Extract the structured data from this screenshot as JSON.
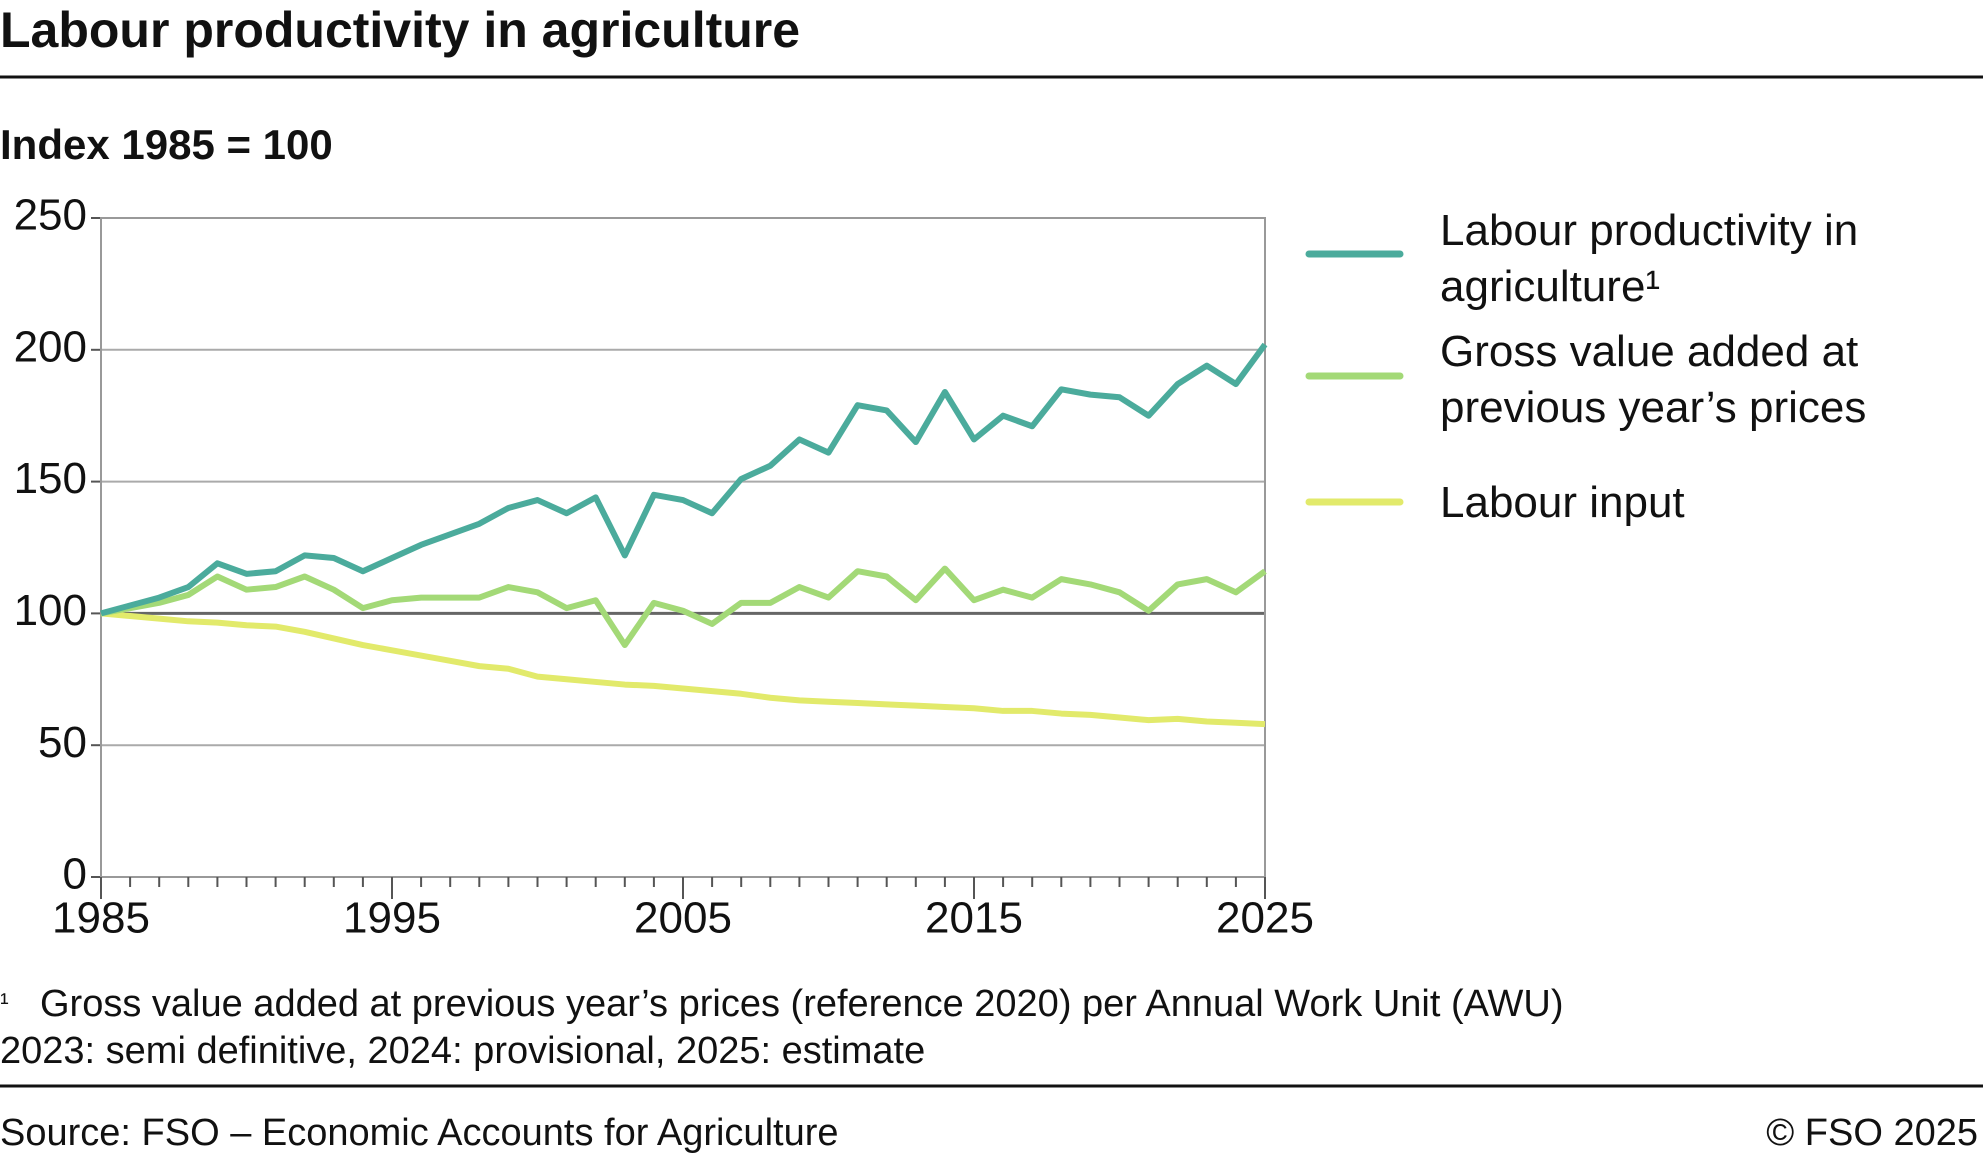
{
  "chart_data": {
    "type": "line",
    "title": "Labour productivity in agriculture",
    "subtitle": "Index 1985 = 100",
    "x": [
      1985,
      1986,
      1987,
      1988,
      1989,
      1990,
      1991,
      1992,
      1993,
      1994,
      1995,
      1996,
      1997,
      1998,
      1999,
      2000,
      2001,
      2002,
      2003,
      2004,
      2005,
      2006,
      2007,
      2008,
      2009,
      2010,
      2011,
      2012,
      2013,
      2014,
      2015,
      2016,
      2017,
      2018,
      2019,
      2020,
      2021,
      2022,
      2023,
      2024,
      2025
    ],
    "series": [
      {
        "name": "Labour productivity in agriculture¹",
        "color": "#4bab9c",
        "values": [
          100,
          103,
          106,
          110,
          119,
          115,
          116,
          122,
          121,
          116,
          121,
          126,
          130,
          134,
          140,
          143,
          138,
          144,
          122,
          145,
          143,
          138,
          151,
          156,
          166,
          161,
          179,
          177,
          165,
          184,
          166,
          175,
          171,
          185,
          183,
          182,
          175,
          187,
          194,
          187,
          202
        ]
      },
      {
        "name": "Gross value added at previous year’s prices",
        "color": "#a3d977",
        "values": [
          100,
          102,
          104,
          107,
          114,
          109,
          110,
          114,
          109,
          102,
          105,
          106,
          106,
          106,
          110,
          108,
          102,
          105,
          88,
          104,
          101,
          96,
          104,
          104,
          110,
          106,
          116,
          114,
          105,
          117,
          105,
          109,
          106,
          113,
          111,
          108,
          101,
          111,
          113,
          108,
          116
        ]
      },
      {
        "name": "Labour input",
        "color": "#e2ea6b",
        "values": [
          100,
          99,
          98,
          97,
          96.5,
          95.5,
          95,
          93,
          90.5,
          88,
          86,
          84,
          82,
          80,
          79,
          76,
          75,
          74,
          73,
          72.5,
          71.5,
          70.5,
          69.5,
          68,
          67,
          66.5,
          66,
          65.5,
          65,
          64.5,
          64,
          63,
          63,
          62,
          61.5,
          60.5,
          59.5,
          60,
          59,
          58.5,
          58
        ]
      }
    ],
    "xlim": [
      1985,
      2025
    ],
    "xticks": [
      1985,
      1995,
      2005,
      2015,
      2025
    ],
    "ylim": [
      0,
      250
    ],
    "yticks": [
      0,
      50,
      100,
      150,
      200,
      250
    ],
    "grid": true,
    "reference_line": 100,
    "legend": "right",
    "footnote": {
      "marker": "¹",
      "text": "Gross value added at previous year’s prices (reference 2020) per Annual Work Unit (AWU)"
    },
    "note": "2023: semi definitive, 2024: provisional, 2025: estimate",
    "source": "Source: FSO – Economic Accounts for Agriculture",
    "copyright": "© FSO 2025"
  }
}
